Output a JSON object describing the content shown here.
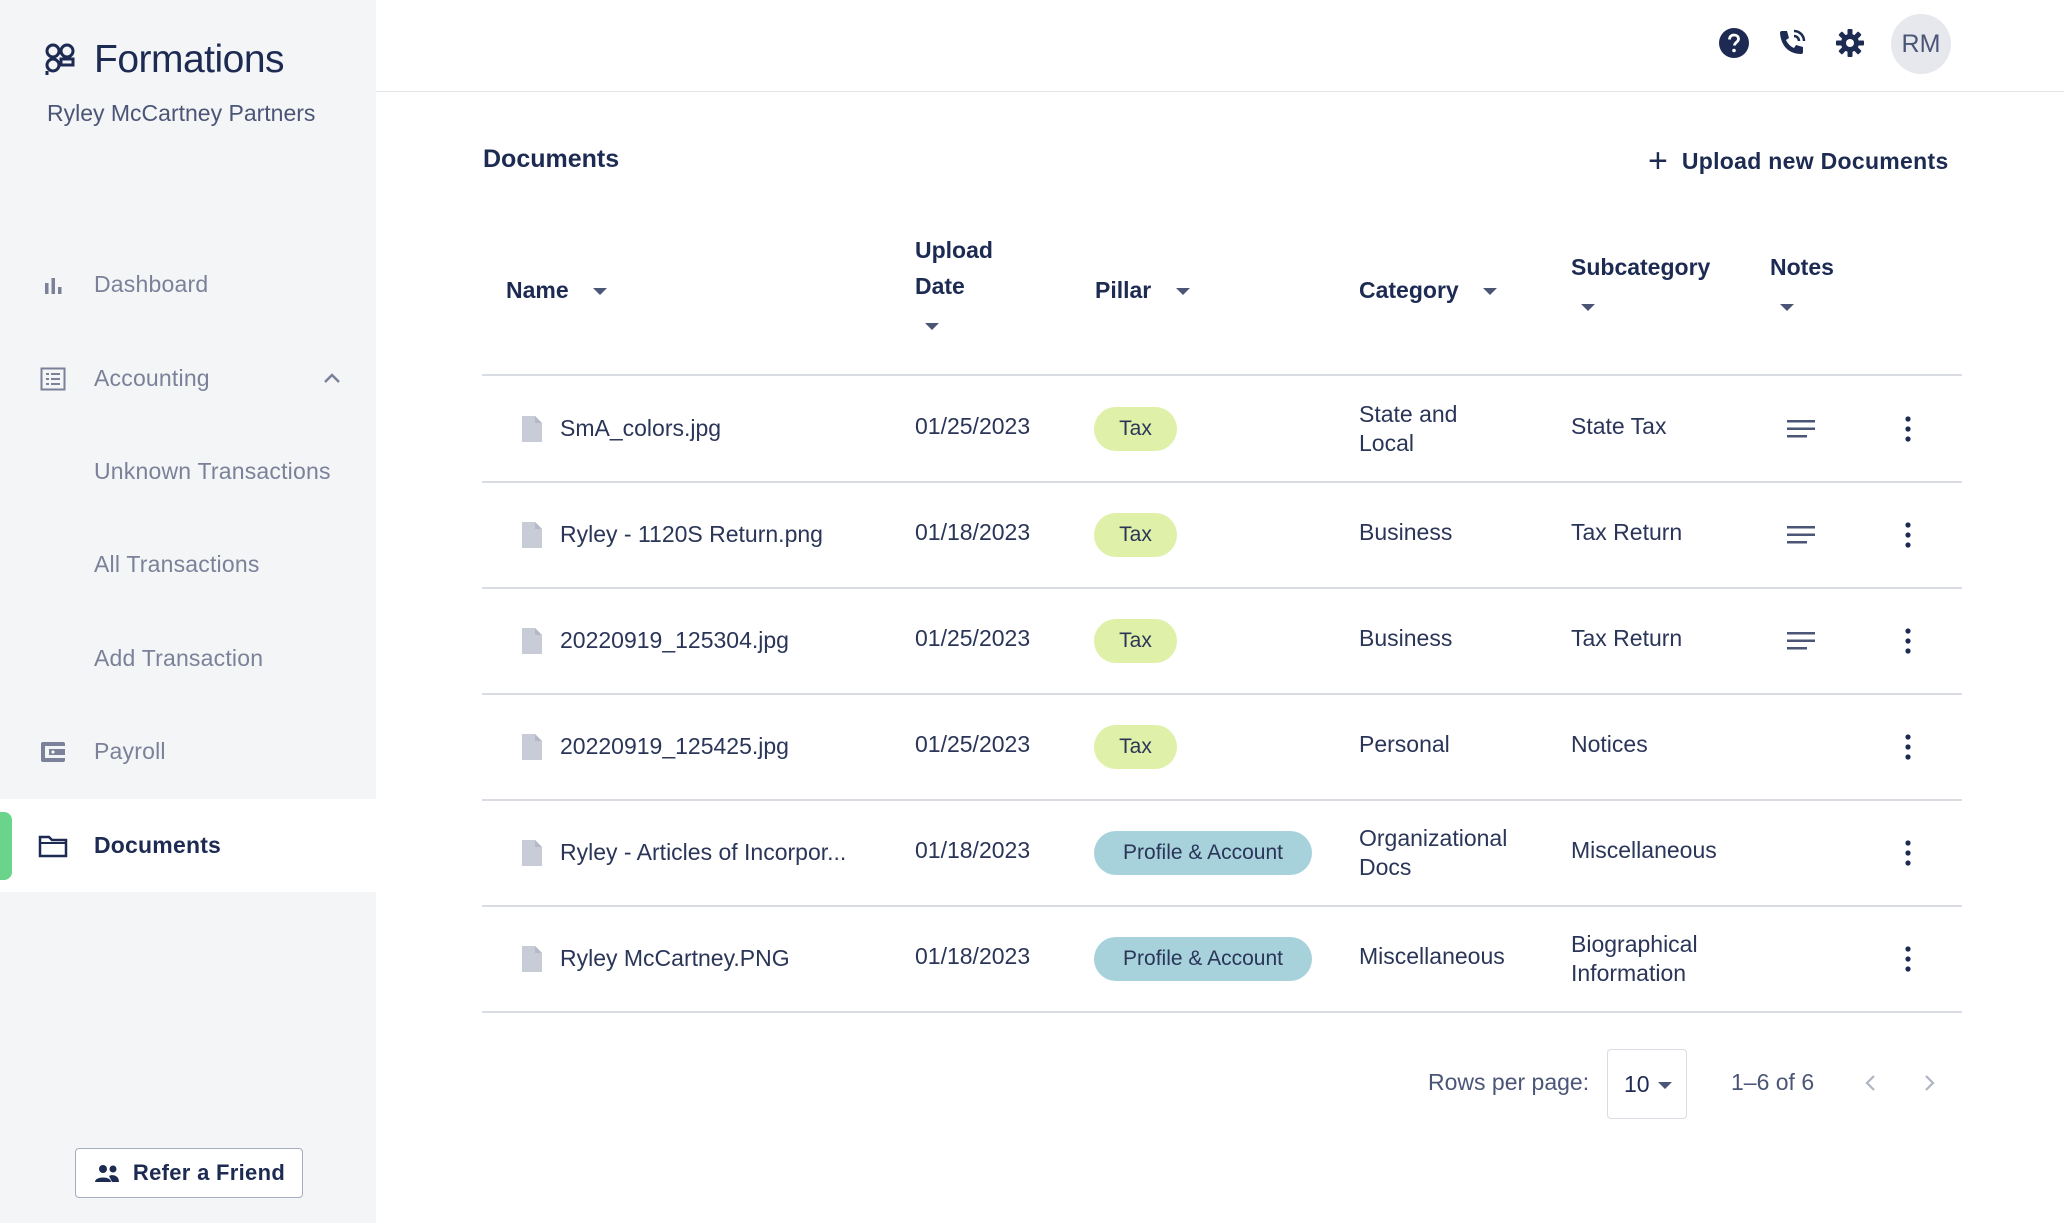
{
  "brand": {
    "name": "Formations",
    "company": "Ryley McCartney Partners"
  },
  "sidebar": {
    "items": [
      {
        "label": "Dashboard",
        "icon": "bar-chart-icon"
      },
      {
        "label": "Accounting",
        "icon": "ledger-icon",
        "expanded": true
      },
      {
        "label": "Unknown Transactions"
      },
      {
        "label": "All Transactions"
      },
      {
        "label": "Add Transaction"
      },
      {
        "label": "Payroll",
        "icon": "wallet-icon"
      },
      {
        "label": "Documents",
        "icon": "folder-icon",
        "active": true
      }
    ],
    "refer_label": "Refer a Friend"
  },
  "header": {
    "icons": [
      "help-icon",
      "phone-icon",
      "settings-icon"
    ],
    "avatar_initials": "RM"
  },
  "main": {
    "title": "Documents",
    "upload_label": "Upload new Documents",
    "columns": {
      "name": "Name",
      "upload_date_line1": "Upload",
      "upload_date_line2": "Date",
      "pillar": "Pillar",
      "category": "Category",
      "subcategory": "Subcategory",
      "notes": "Notes"
    },
    "rows": [
      {
        "name": "SmA_colors.jpg",
        "date": "01/25/2023",
        "pillar": "Tax",
        "category_1": "State and",
        "category_2": "Local",
        "sub_1": "State Tax",
        "sub_2": "",
        "has_notes": true
      },
      {
        "name": "Ryley - 1120S Return.png",
        "date": "01/18/2023",
        "pillar": "Tax",
        "category_1": "Business",
        "category_2": "",
        "sub_1": "Tax Return",
        "sub_2": "",
        "has_notes": true
      },
      {
        "name": "20220919_125304.jpg",
        "date": "01/25/2023",
        "pillar": "Tax",
        "category_1": "Business",
        "category_2": "",
        "sub_1": "Tax Return",
        "sub_2": "",
        "has_notes": true
      },
      {
        "name": "20220919_125425.jpg",
        "date": "01/25/2023",
        "pillar": "Tax",
        "category_1": "Personal",
        "category_2": "",
        "sub_1": "Notices",
        "sub_2": "",
        "has_notes": false
      },
      {
        "name": "Ryley - Articles of Incorpor...",
        "date": "01/18/2023",
        "pillar": "Profile & Account",
        "category_1": "Organizational",
        "category_2": "Docs",
        "sub_1": "Miscellaneous",
        "sub_2": "",
        "has_notes": false
      },
      {
        "name": "Ryley McCartney.PNG",
        "date": "01/18/2023",
        "pillar": "Profile & Account",
        "category_1": "Miscellaneous",
        "category_2": "",
        "sub_1": "Biographical",
        "sub_2": "Information",
        "has_notes": false
      }
    ]
  },
  "pagination": {
    "rows_per_page_label": "Rows per page:",
    "rows_per_page": "10",
    "range": "1–6 of 6"
  },
  "colors": {
    "accent": "#6ad48b",
    "tax_pill": "#dff0a8",
    "profile_pill": "#a7d2dc",
    "text_primary": "#1d2b53"
  }
}
